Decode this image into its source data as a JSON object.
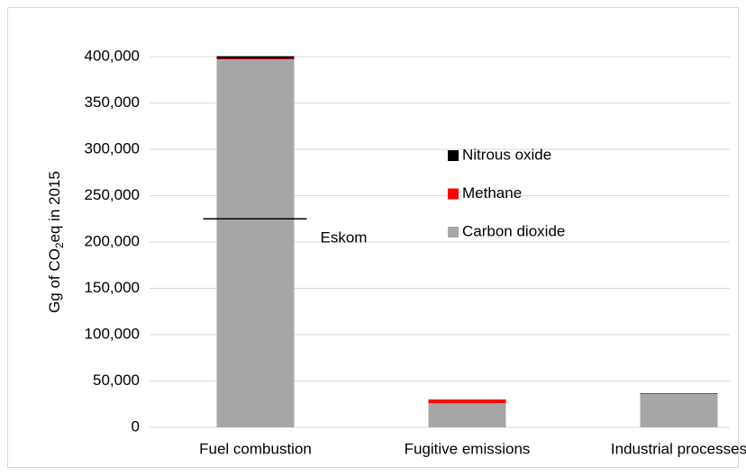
{
  "chart_data": {
    "type": "stacked_bar",
    "ylabel": [
      "Gg of CO",
      "2",
      "eq in 2015"
    ],
    "categories": [
      "Fuel combustion",
      "Fugitive emissions",
      "Industrial processes"
    ],
    "series": [
      {
        "name": "Carbon dioxide",
        "color": "#a6a6a6",
        "values": [
          397000,
          26000,
          36000
        ]
      },
      {
        "name": "Methane",
        "color": "#ff0000",
        "values": [
          1000,
          4000,
          500
        ]
      },
      {
        "name": "Nitrous oxide",
        "color": "#000000",
        "values": [
          2500,
          0,
          300
        ]
      }
    ],
    "ylim": [
      0,
      400000
    ],
    "yticks": [
      0,
      {
        "value": 50000,
        "label": "50,000"
      },
      {
        "value": 100000,
        "label": "100,000"
      },
      {
        "value": 150000,
        "label": "150,000"
      },
      {
        "value": 200000,
        "label": "200,000"
      },
      {
        "value": 250000,
        "label": "250,000"
      },
      {
        "value": 300000,
        "label": "300,000"
      },
      {
        "value": 350000,
        "label": "350,000"
      },
      {
        "value": 400000,
        "label": "400,000"
      }
    ],
    "grid": true,
    "legend": "center",
    "annotations": [
      {
        "text": "Eskom",
        "value": 225000,
        "category": 0
      }
    ]
  }
}
